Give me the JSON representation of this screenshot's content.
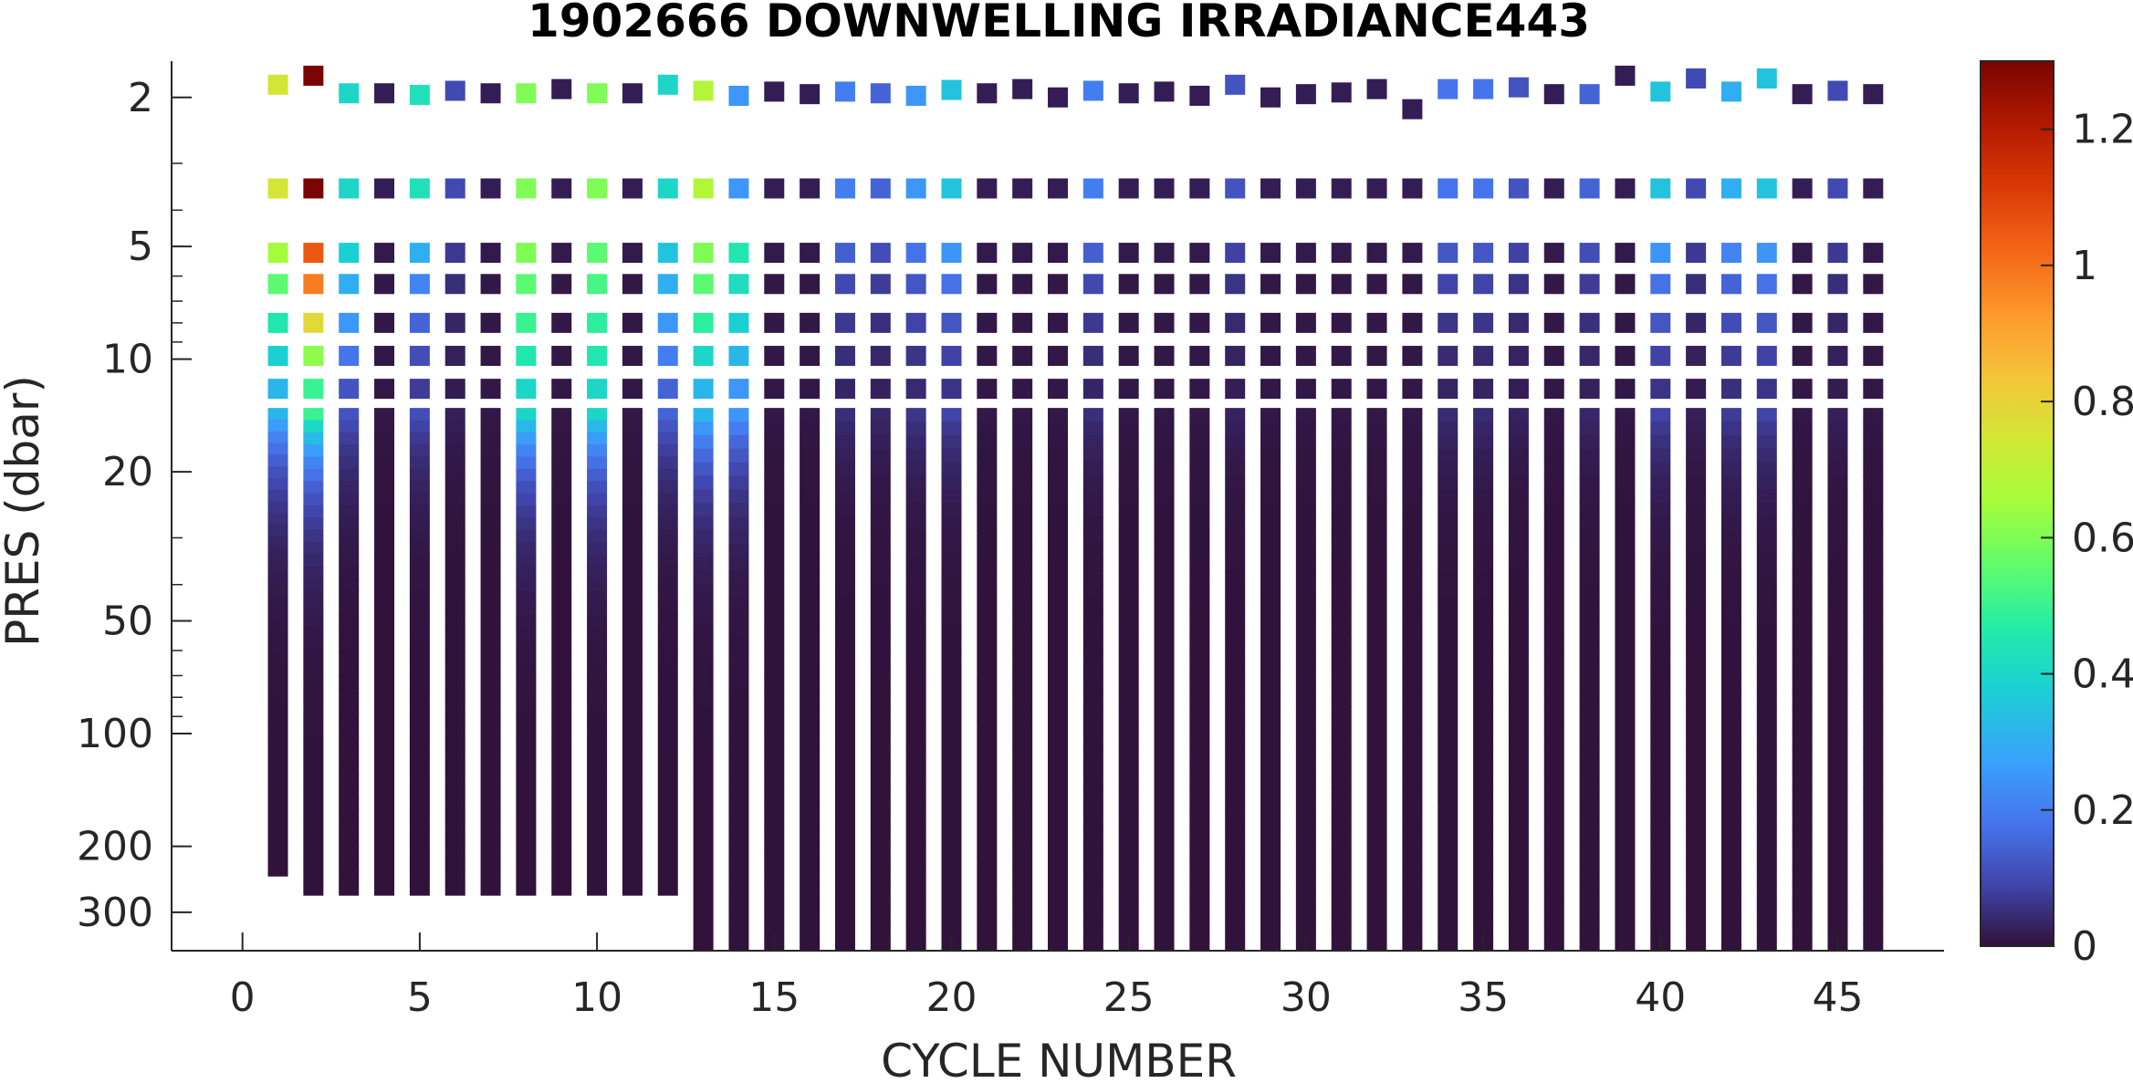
{
  "chart_data": {
    "type": "heatmap",
    "title": "1902666  DOWNWELLING IRRADIANCE443",
    "xlabel": "CYCLE NUMBER",
    "ylabel": "PRES (dbar)",
    "x_ticks": [
      0,
      5,
      10,
      15,
      20,
      25,
      30,
      35,
      40,
      45
    ],
    "x_range": [
      -2,
      48
    ],
    "y_scale": "log",
    "y_reversed": true,
    "y_ticks": [
      2,
      5,
      10,
      20,
      50,
      100,
      200,
      300
    ],
    "y_range": [
      1.6,
      380
    ],
    "colorbar": {
      "colormap": "turbo",
      "range": [
        0,
        1.3
      ],
      "ticks": [
        0,
        0.2,
        0.4,
        0.6,
        0.8,
        1,
        1.2
      ],
      "tick_labels": [
        "0",
        "0.2",
        "0.4",
        "0.6",
        "0.8",
        "1",
        "1.2"
      ]
    },
    "cycles": [
      1,
      2,
      3,
      4,
      5,
      6,
      7,
      8,
      9,
      10,
      11,
      12,
      13,
      14,
      15,
      16,
      17,
      18,
      19,
      20,
      21,
      22,
      23,
      24,
      25,
      26,
      27,
      28,
      29,
      30,
      31,
      32,
      33,
      34,
      35,
      36,
      37,
      38,
      39,
      40,
      41,
      42,
      43,
      44,
      45,
      46
    ],
    "max_pressure_dbar": [
      240,
      270,
      270,
      270,
      270,
      270,
      270,
      270,
      270,
      270,
      270,
      270,
      380,
      380,
      380,
      380,
      380,
      380,
      380,
      380,
      380,
      380,
      380,
      380,
      380,
      380,
      380,
      380,
      380,
      380,
      380,
      380,
      380,
      380,
      380,
      380,
      380,
      380,
      380,
      380,
      380,
      380,
      380,
      380,
      380,
      380
    ],
    "surface_pressure_dbar": [
      1.85,
      1.75,
      1.95,
      1.95,
      1.97,
      1.92,
      1.95,
      1.95,
      1.9,
      1.95,
      1.95,
      1.85,
      1.92,
      1.98,
      1.93,
      1.96,
      1.93,
      1.95,
      1.98,
      1.91,
      1.95,
      1.9,
      2.0,
      1.92,
      1.95,
      1.93,
      1.98,
      1.85,
      2.0,
      1.96,
      1.94,
      1.9,
      2.15,
      1.9,
      1.9,
      1.88,
      1.96,
      1.96,
      1.75,
      1.93,
      1.78,
      1.93,
      1.78,
      1.96,
      1.92,
      1.96
    ],
    "surface_irradiance": [
      0.75,
      1.3,
      0.4,
      0.02,
      0.43,
      0.1,
      0.02,
      0.6,
      0.02,
      0.6,
      0.02,
      0.4,
      0.68,
      0.25,
      0.02,
      0.02,
      0.2,
      0.15,
      0.25,
      0.35,
      0.02,
      0.02,
      0.02,
      0.2,
      0.02,
      0.02,
      0.02,
      0.12,
      0.02,
      0.02,
      0.02,
      0.02,
      0.02,
      0.18,
      0.18,
      0.12,
      0.02,
      0.15,
      0.02,
      0.35,
      0.1,
      0.3,
      0.35,
      0.02,
      0.1,
      0.02
    ],
    "surface_to_10dbar_profile": [
      {
        "cycle": 1,
        "values": [
          0.75,
          0.65,
          0.55,
          0.45,
          0.38,
          0.32
        ]
      },
      {
        "cycle": 2,
        "values": [
          1.3,
          1.05,
          0.98,
          0.78,
          0.62,
          0.5
        ]
      },
      {
        "cycle": 3,
        "values": [
          0.4,
          0.38,
          0.3,
          0.25,
          0.18,
          0.12
        ]
      },
      {
        "cycle": 8,
        "values": [
          0.6,
          0.6,
          0.55,
          0.5,
          0.45,
          0.4
        ]
      },
      {
        "cycle": 10,
        "values": [
          0.6,
          0.55,
          0.52,
          0.48,
          0.45,
          0.4
        ]
      },
      {
        "cycle": 12,
        "values": [
          0.4,
          0.35,
          0.3,
          0.25,
          0.2,
          0.15
        ]
      },
      {
        "cycle": 13,
        "values": [
          0.68,
          0.6,
          0.55,
          0.48,
          0.4,
          0.32
        ]
      },
      {
        "cycle": 14,
        "values": [
          0.25,
          0.45,
          0.42,
          0.38,
          0.32,
          0.25
        ]
      }
    ]
  }
}
